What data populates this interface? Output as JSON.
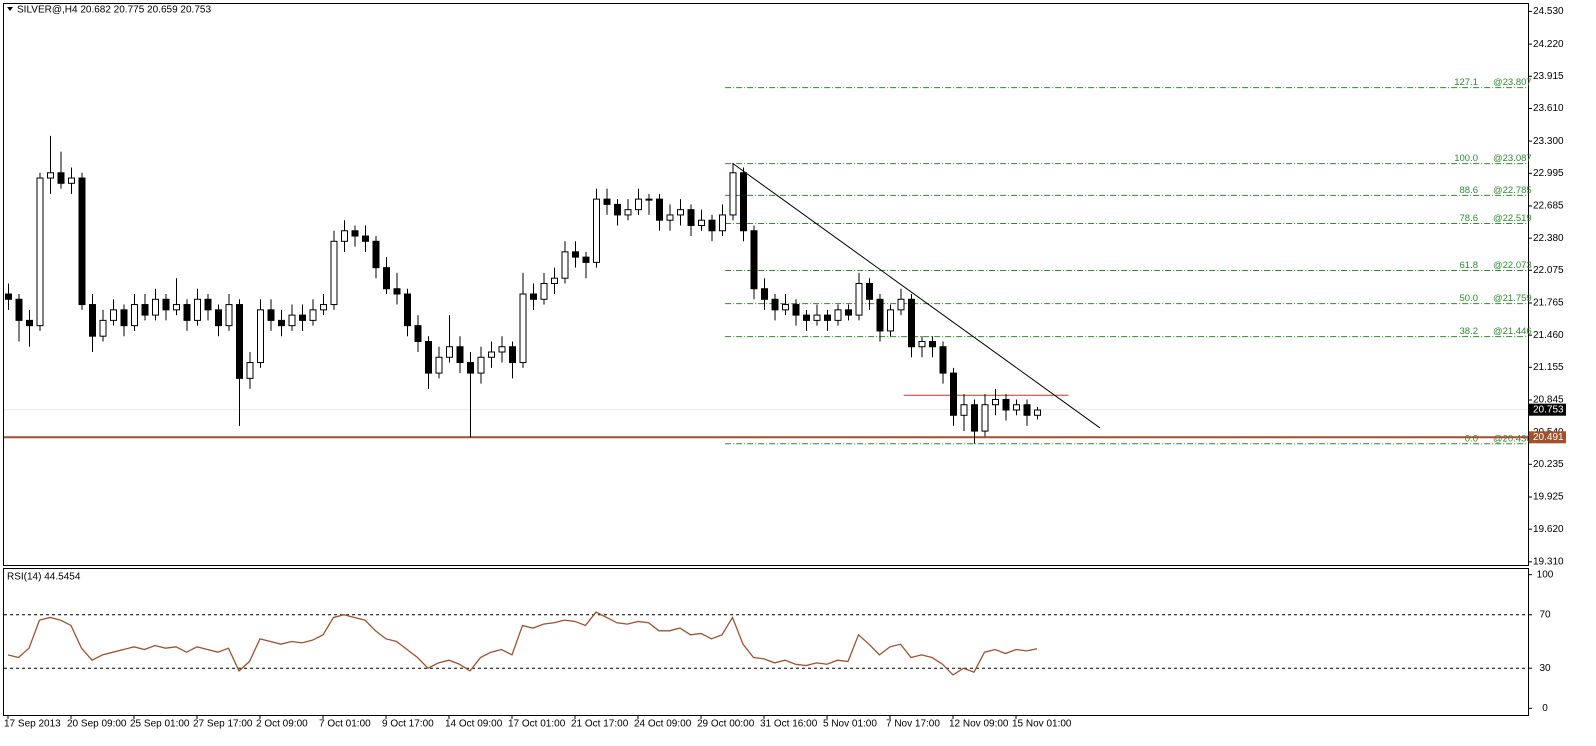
{
  "chart_data": {
    "type": "candlestick",
    "title": "SILVER@,H4 20.682 20.775 20.659 20.753",
    "categories": [
      "17 Sep 2013",
      null,
      null,
      null,
      null,
      null,
      "20 Sep 09:00",
      null,
      null,
      null,
      null,
      null,
      "25 Sep 01:00",
      null,
      null,
      null,
      null,
      null,
      "27 Sep 17:00",
      null,
      null,
      null,
      null,
      null,
      "2 Oct 09:00",
      null,
      null,
      null,
      null,
      null,
      "7 Oct 01:00",
      null,
      null,
      null,
      null,
      null,
      "9 Oct 17:00",
      null,
      null,
      null,
      null,
      null,
      "14 Oct 09:00",
      null,
      null,
      null,
      null,
      null,
      "17 Oct 01:00",
      null,
      null,
      null,
      null,
      null,
      "21 Oct 17:00",
      null,
      null,
      null,
      null,
      null,
      "24 Oct 09:00",
      null,
      null,
      null,
      null,
      null,
      "29 Oct 00:00",
      null,
      null,
      null,
      null,
      null,
      "31 Oct 16:00",
      null,
      null,
      null,
      null,
      null,
      "5 Nov 01:00",
      null,
      null,
      null,
      null,
      null,
      "7 Nov 17:00",
      null,
      null,
      null,
      null,
      null,
      "12 Nov 09:00",
      null,
      null,
      null,
      null,
      null,
      "15 Nov 01:00",
      null,
      null
    ],
    "ohlc": [
      [
        21.85,
        21.95,
        21.7,
        21.8
      ],
      [
        21.8,
        21.85,
        21.4,
        21.6
      ],
      [
        21.6,
        21.7,
        21.35,
        21.55
      ],
      [
        21.55,
        23.0,
        21.5,
        22.95
      ],
      [
        22.95,
        23.35,
        22.8,
        23.0
      ],
      [
        23.0,
        23.2,
        22.85,
        22.9
      ],
      [
        22.9,
        23.05,
        22.8,
        22.95
      ],
      [
        22.95,
        23.0,
        21.7,
        21.75
      ],
      [
        21.75,
        21.85,
        21.3,
        21.45
      ],
      [
        21.45,
        21.7,
        21.4,
        21.6
      ],
      [
        21.6,
        21.8,
        21.55,
        21.7
      ],
      [
        21.7,
        21.75,
        21.45,
        21.55
      ],
      [
        21.55,
        21.85,
        21.5,
        21.75
      ],
      [
        21.75,
        21.85,
        21.6,
        21.65
      ],
      [
        21.65,
        21.9,
        21.6,
        21.8
      ],
      [
        21.8,
        21.85,
        21.6,
        21.7
      ],
      [
        21.7,
        22.0,
        21.65,
        21.75
      ],
      [
        21.75,
        21.8,
        21.5,
        21.6
      ],
      [
        21.6,
        21.9,
        21.55,
        21.8
      ],
      [
        21.8,
        21.85,
        21.6,
        21.7
      ],
      [
        21.7,
        21.75,
        21.45,
        21.55
      ],
      [
        21.55,
        21.85,
        21.5,
        21.75
      ],
      [
        21.75,
        21.8,
        20.6,
        21.05
      ],
      [
        21.05,
        21.3,
        20.95,
        21.2
      ],
      [
        21.2,
        21.8,
        21.15,
        21.7
      ],
      [
        21.7,
        21.8,
        21.5,
        21.6
      ],
      [
        21.6,
        21.7,
        21.45,
        21.55
      ],
      [
        21.55,
        21.75,
        21.5,
        21.65
      ],
      [
        21.65,
        21.75,
        21.5,
        21.6
      ],
      [
        21.6,
        21.8,
        21.55,
        21.7
      ],
      [
        21.7,
        21.85,
        21.65,
        21.75
      ],
      [
        21.75,
        22.45,
        21.7,
        22.35
      ],
      [
        22.35,
        22.55,
        22.25,
        22.45
      ],
      [
        22.45,
        22.5,
        22.3,
        22.4
      ],
      [
        22.4,
        22.5,
        22.25,
        22.35
      ],
      [
        22.35,
        22.4,
        22.0,
        22.1
      ],
      [
        22.1,
        22.2,
        21.85,
        21.9
      ],
      [
        21.9,
        22.05,
        21.75,
        21.85
      ],
      [
        21.85,
        21.9,
        21.45,
        21.55
      ],
      [
        21.55,
        21.65,
        21.3,
        21.4
      ],
      [
        21.4,
        21.45,
        20.95,
        21.1
      ],
      [
        21.1,
        21.35,
        21.05,
        21.25
      ],
      [
        21.25,
        21.65,
        21.2,
        21.35
      ],
      [
        21.35,
        21.45,
        21.1,
        21.2
      ],
      [
        21.2,
        21.3,
        20.49,
        21.1
      ],
      [
        21.1,
        21.35,
        21.0,
        21.25
      ],
      [
        21.25,
        21.4,
        21.15,
        21.3
      ],
      [
        21.3,
        21.45,
        21.2,
        21.35
      ],
      [
        21.35,
        21.4,
        21.05,
        21.2
      ],
      [
        21.2,
        22.05,
        21.15,
        21.85
      ],
      [
        21.85,
        21.95,
        21.7,
        21.8
      ],
      [
        21.8,
        22.05,
        21.75,
        21.95
      ],
      [
        21.95,
        22.1,
        21.85,
        22.0
      ],
      [
        22.0,
        22.35,
        21.95,
        22.25
      ],
      [
        22.25,
        22.35,
        22.1,
        22.2
      ],
      [
        22.2,
        22.25,
        22.0,
        22.15
      ],
      [
        22.15,
        22.85,
        22.1,
        22.75
      ],
      [
        22.75,
        22.85,
        22.6,
        22.7
      ],
      [
        22.7,
        22.75,
        22.5,
        22.6
      ],
      [
        22.6,
        22.75,
        22.55,
        22.65
      ],
      [
        22.65,
        22.85,
        22.6,
        22.75
      ],
      [
        22.75,
        22.8,
        22.6,
        22.75
      ],
      [
        22.75,
        22.8,
        22.45,
        22.55
      ],
      [
        22.55,
        22.7,
        22.45,
        22.6
      ],
      [
        22.6,
        22.75,
        22.5,
        22.65
      ],
      [
        22.65,
        22.7,
        22.4,
        22.5
      ],
      [
        22.5,
        22.65,
        22.45,
        22.55
      ],
      [
        22.55,
        22.6,
        22.35,
        22.45
      ],
      [
        22.45,
        22.7,
        22.4,
        22.6
      ],
      [
        22.6,
        23.09,
        22.55,
        23.0
      ],
      [
        23.0,
        23.05,
        22.35,
        22.45
      ],
      [
        22.45,
        22.5,
        21.8,
        21.9
      ],
      [
        21.9,
        22.0,
        21.7,
        21.8
      ],
      [
        21.8,
        21.85,
        21.6,
        21.7
      ],
      [
        21.7,
        21.85,
        21.65,
        21.75
      ],
      [
        21.75,
        21.8,
        21.55,
        21.65
      ],
      [
        21.65,
        21.7,
        21.5,
        21.6
      ],
      [
        21.6,
        21.75,
        21.55,
        21.65
      ],
      [
        21.65,
        21.7,
        21.5,
        21.6
      ],
      [
        21.6,
        21.75,
        21.55,
        21.7
      ],
      [
        21.7,
        21.75,
        21.6,
        21.65
      ],
      [
        21.65,
        22.05,
        21.6,
        21.95
      ],
      [
        21.95,
        22.0,
        21.7,
        21.8
      ],
      [
        21.8,
        21.85,
        21.4,
        21.5
      ],
      [
        21.5,
        21.75,
        21.45,
        21.7
      ],
      [
        21.7,
        21.9,
        21.65,
        21.8
      ],
      [
        21.8,
        21.85,
        21.25,
        21.35
      ],
      [
        21.35,
        21.45,
        21.25,
        21.4
      ],
      [
        21.4,
        21.45,
        21.25,
        21.35
      ],
      [
        21.35,
        21.4,
        21.0,
        21.1
      ],
      [
        21.1,
        21.15,
        20.6,
        20.7
      ],
      [
        20.7,
        20.9,
        20.55,
        20.8
      ],
      [
        20.8,
        20.85,
        20.43,
        20.55
      ],
      [
        20.55,
        20.9,
        20.5,
        20.8
      ],
      [
        20.8,
        20.95,
        20.7,
        20.85
      ],
      [
        20.85,
        20.9,
        20.65,
        20.75
      ],
      [
        20.75,
        20.85,
        20.7,
        20.8
      ],
      [
        20.8,
        20.85,
        20.6,
        20.7
      ],
      [
        20.7,
        20.78,
        20.66,
        20.75
      ]
    ],
    "bull_color": "#ffffff",
    "bear_color": "#000000",
    "ylim": [
      19.28,
      24.61
    ],
    "yticks": [
      {
        "value": 24.53,
        "label": "24.530"
      },
      {
        "value": 24.22,
        "label": "24.220"
      },
      23.915,
      {
        "value": 23.61,
        "label": "23.610"
      },
      {
        "value": 23.3,
        "label": "23.300"
      },
      22.995,
      22.685,
      {
        "value": 22.38,
        "label": "22.380"
      },
      22.075,
      21.765,
      {
        "value": 21.46,
        "label": "21.460"
      },
      21.155,
      20.845,
      {
        "value": 20.54,
        "label": "20.540"
      },
      20.235,
      19.925,
      {
        "value": 19.62,
        "label": "19.620"
      },
      {
        "value": 19.31,
        "label": "19.310"
      }
    ],
    "bid": 20.753,
    "support": {
      "value": 20.491,
      "color": "#a0522d"
    },
    "resistance": {
      "x": [
        85.3,
        101
      ],
      "y": [
        20.89,
        20.89
      ],
      "color": "#cc3333"
    },
    "trendline": {
      "x": [
        69,
        104
      ],
      "y": [
        23.09,
        20.58
      ],
      "color": "#000000"
    },
    "fibo": {
      "x_start": 68.3,
      "color": "#2e8b2e",
      "levels": [
        {
          "level": 127.1,
          "price": {
            "value": 23.807,
            "label": "@23.807"
          }
        },
        {
          "level": {
            "value": 100,
            "label": "100.0"
          },
          "price": {
            "value": 23.087,
            "label": "@23.087"
          }
        },
        {
          "level": 88.6,
          "price": {
            "value": 22.785,
            "label": "@22.785"
          }
        },
        {
          "level": 78.6,
          "price": {
            "value": 22.519,
            "label": "@22.519"
          }
        },
        {
          "level": 61.8,
          "price": {
            "value": 22.073,
            "label": "@22.073"
          }
        },
        {
          "level": {
            "value": 50,
            "label": "50.0"
          },
          "price": {
            "value": 21.759,
            "label": "@21.759"
          }
        },
        {
          "level": 38.2,
          "price": {
            "value": 21.446,
            "label": "@21.446"
          }
        },
        {
          "level": {
            "value": 0,
            "label": "0.0"
          },
          "price": {
            "value": 20.43,
            "label": "@20.430"
          }
        }
      ]
    },
    "indicator": {
      "type": "line",
      "title": "RSI(14) 44.5454",
      "color": "#a0522d",
      "values": [
        40,
        38,
        45,
        66,
        68,
        66,
        62,
        45,
        36,
        40,
        42,
        44,
        46,
        44,
        47,
        45,
        46,
        42,
        46,
        44,
        42,
        45,
        28,
        35,
        52,
        50,
        48,
        50,
        49,
        51,
        55,
        68,
        70,
        68,
        66,
        58,
        52,
        50,
        44,
        38,
        30,
        34,
        36,
        33,
        28,
        38,
        42,
        44,
        40,
        62,
        60,
        63,
        64,
        66,
        65,
        62,
        72,
        68,
        64,
        63,
        65,
        64,
        58,
        58,
        60,
        55,
        56,
        52,
        55,
        68,
        48,
        38,
        37,
        34,
        36,
        33,
        32,
        34,
        33,
        36,
        35,
        55,
        48,
        40,
        46,
        48,
        38,
        40,
        38,
        33,
        25,
        30,
        27,
        42,
        44,
        41,
        44,
        43,
        44.5454
      ],
      "ylim": [
        -5,
        105
      ],
      "yticks": [
        0,
        30,
        70,
        100
      ],
      "levels": [
        30,
        70
      ]
    }
  }
}
